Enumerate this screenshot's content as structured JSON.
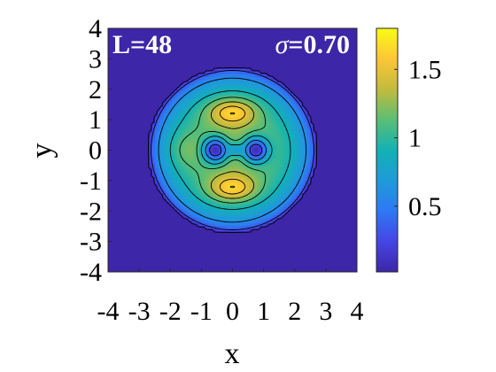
{
  "chart_data": {
    "type": "heatmap",
    "title": "",
    "xlabel": "x",
    "ylabel": "y",
    "xlim": [
      -4,
      4
    ],
    "ylim": [
      -4,
      4
    ],
    "x_ticks": [
      "-4",
      "-3",
      "-2",
      "-1",
      "0",
      "1",
      "2",
      "3",
      "4"
    ],
    "y_ticks": [
      "4",
      "3",
      "2",
      "1",
      "0",
      "-1",
      "-2",
      "-3",
      "-4"
    ],
    "annotation_left": "L=48",
    "annotation_sigma": "σ",
    "annotation_sigma_value": "=0.70",
    "colorbar": {
      "range": [
        0.02,
        1.8
      ],
      "ticks": [
        0.5,
        1,
        1.5
      ],
      "tick_labels": [
        "0.5",
        "1",
        "1.5"
      ],
      "colormap": "parula"
    },
    "density_features": {
      "support_radius": 2.7,
      "peak_value": 1.8,
      "vortex_cores": [
        {
          "x": -0.55,
          "y": 0
        },
        {
          "x": 0.75,
          "y": 0
        }
      ],
      "maxima": [
        {
          "x": 0,
          "y": 1.25
        },
        {
          "x": 0,
          "y": -1.25
        }
      ],
      "contour_levels": [
        0.05,
        0.3,
        0.6,
        0.9,
        1.1,
        1.3,
        1.5,
        1.65
      ],
      "grid": false
    }
  },
  "colors": {
    "background_field": "#3e26a8",
    "axes": "#262626"
  }
}
